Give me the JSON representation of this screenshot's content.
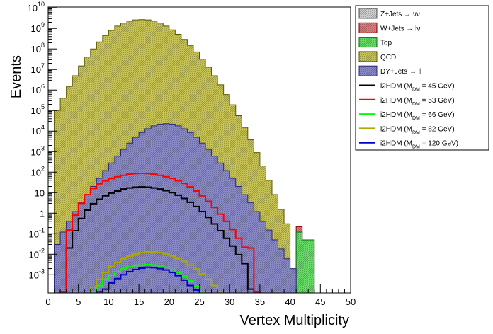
{
  "chart_data": {
    "type": "histogram",
    "xlabel": "Vertex Multiplicity",
    "ylabel": "Events",
    "x_range": [
      0,
      50
    ],
    "bin_width": 1,
    "y_scale": "log",
    "y_range": [
      0.00013,
      11000000000
    ],
    "x_ticks": [
      0,
      5,
      10,
      15,
      20,
      25,
      30,
      35,
      40,
      45,
      50
    ],
    "y_ticks": [
      {
        "value": 0.001,
        "base": "10",
        "exp": "-3"
      },
      {
        "value": 0.01,
        "base": "10",
        "exp": "-2"
      },
      {
        "value": 0.1,
        "base": "10",
        "exp": "-1"
      },
      {
        "value": 1,
        "base": "1",
        "exp": ""
      },
      {
        "value": 10,
        "base": "10",
        "exp": ""
      },
      {
        "value": 100,
        "base": "10",
        "exp": "2"
      },
      {
        "value": 1000,
        "base": "10",
        "exp": "3"
      },
      {
        "value": 10000,
        "base": "10",
        "exp": "4"
      },
      {
        "value": 100000,
        "base": "10",
        "exp": "5"
      },
      {
        "value": 1000000,
        "base": "10",
        "exp": "6"
      },
      {
        "value": 10000000,
        "base": "10",
        "exp": "7"
      },
      {
        "value": 100000000,
        "base": "10",
        "exp": "8"
      },
      {
        "value": 1000000000,
        "base": "10",
        "exp": "9"
      },
      {
        "value": 10000000000,
        "base": "10",
        "exp": "10"
      }
    ],
    "legend_position": "top-right",
    "stacked_backgrounds": [
      {
        "label": "DY+Jets → ll",
        "fill": "#8a8ac8",
        "edge": "#2a2a7a",
        "pattern": "hatched",
        "values": [
          2e-05,
          0.03,
          0.12,
          0.4,
          1.2,
          3.2,
          8,
          20,
          50,
          120,
          280,
          600,
          1300,
          2600,
          5000,
          8500,
          13000,
          18000,
          22000,
          23000,
          22000,
          18000,
          13000,
          8500,
          5000,
          2600,
          1300,
          600,
          280,
          120,
          50,
          20,
          8,
          3.2,
          1.2,
          0.4,
          0.15,
          0.05,
          0.018,
          0.006,
          0.002,
          0,
          0,
          0,
          0,
          0,
          0,
          0,
          0,
          0
        ]
      },
      {
        "label": "QCD",
        "fill": "#c8c455",
        "edge": "#5c5a00",
        "pattern": "hatched",
        "values": [
          2e-05,
          100000,
          400000,
          1500000,
          5000000,
          15000000,
          40000000,
          100000000,
          220000000,
          450000000,
          800000000,
          1300000000,
          1800000000,
          2300000000,
          2600000000,
          2700000000,
          2600000000,
          2300000000,
          1800000000,
          1300000000,
          850000000,
          520000000,
          290000000,
          150000000,
          72000000,
          32000000,
          13000000,
          5000000,
          1800000,
          600000,
          190000,
          56000,
          15000,
          3800,
          900,
          200,
          40,
          8,
          1.5,
          0.3,
          0,
          0,
          0,
          0,
          0,
          0,
          0,
          0,
          0,
          0
        ]
      },
      {
        "label": "Top",
        "fill": "#66dd66",
        "edge": "#0b6b0b",
        "pattern": "hatched",
        "values": [
          0,
          0,
          0,
          0,
          0,
          0,
          0,
          0,
          0,
          0,
          0,
          0,
          0,
          0,
          0,
          0,
          0,
          0,
          0,
          0,
          0,
          0,
          0,
          0,
          0,
          0,
          0,
          0,
          0,
          0,
          0,
          0,
          0,
          0,
          0,
          0,
          0,
          0,
          0,
          0,
          0,
          0.12,
          0.05,
          0.05,
          0,
          0,
          0,
          0,
          0,
          0
        ]
      },
      {
        "label": "W+Jets → lν",
        "fill": "#e07a7a",
        "edge": "#8a0000",
        "pattern": "hatched",
        "values": [
          0,
          0,
          0,
          0,
          0,
          0,
          0,
          0,
          0,
          0,
          0,
          0,
          0,
          0,
          0,
          0,
          0,
          0,
          0,
          0,
          0,
          0,
          0,
          0,
          0,
          0,
          0,
          0,
          0,
          0,
          0,
          0,
          0,
          0,
          0,
          0,
          0,
          0,
          0,
          0,
          0,
          0.1,
          0,
          0,
          0,
          0,
          0,
          0,
          0,
          0
        ]
      },
      {
        "label": "Z+Jets → νν",
        "fill": "#cfcfcf",
        "edge": "#555555",
        "pattern": "hatched",
        "values": [
          0,
          0,
          0,
          0,
          0,
          0,
          0,
          0,
          0,
          0,
          0,
          0,
          0,
          0,
          0,
          0,
          0,
          0,
          0,
          0,
          0,
          0,
          0,
          0,
          0,
          0,
          0,
          0,
          0,
          0,
          0,
          0,
          0,
          0,
          0,
          0,
          0,
          0,
          0,
          0,
          0,
          0,
          0,
          0,
          0,
          0,
          0,
          0,
          0,
          0
        ]
      }
    ],
    "signal_series": [
      {
        "label": "i2HDM (M",
        "sub": "DM",
        "mass_text": " =  45 GeV)",
        "color": "#000000",
        "values": [
          0,
          0,
          0.00015,
          0.02,
          0.14,
          0.55,
          1.4,
          2.9,
          4.8,
          7,
          9.5,
          12,
          15,
          17,
          18.5,
          19,
          18.5,
          17,
          15,
          12.5,
          10,
          7.5,
          5.2,
          3.4,
          2.1,
          1.2,
          0.62,
          0.3,
          0.14,
          0.06,
          0.025,
          0.0095,
          0.0035,
          0.0002,
          0.00015,
          0,
          0,
          0,
          0,
          0,
          0,
          0,
          0,
          0,
          0,
          0,
          0,
          0,
          0,
          0
        ]
      },
      {
        "label": "i2HDM (M",
        "sub": "DM",
        "mass_text": " =  53 GeV)",
        "color": "#ff0000",
        "values": [
          0,
          0,
          0.00015,
          0.15,
          0.8,
          3,
          8,
          16,
          27,
          38,
          49,
          60,
          70,
          80,
          85,
          87,
          85,
          80,
          70,
          60,
          49,
          38,
          28,
          19,
          12,
          7,
          3.8,
          1.9,
          0.9,
          0.4,
          0.16,
          0.06,
          0.022,
          0.02,
          0.00015,
          0,
          0,
          0,
          0,
          0,
          0,
          0,
          0,
          0,
          0,
          0,
          0,
          0,
          0,
          0
        ]
      },
      {
        "label": "i2HDM (M",
        "sub": "DM",
        "mass_text": " =  66 GeV)",
        "color": "#00ff00",
        "values": [
          0,
          0,
          0,
          0,
          0,
          0,
          0,
          0.00015,
          0.0003,
          0.0006,
          0.00095,
          0.0014,
          0.0019,
          0.0024,
          0.0028,
          0.003,
          0.0031,
          0.003,
          0.0027,
          0.0023,
          0.0018,
          0.0013,
          0.00085,
          0.0005,
          0.00028,
          0.00015,
          0,
          0,
          0,
          0,
          0,
          0,
          0,
          0,
          0,
          0,
          0,
          0,
          0,
          0,
          0,
          0,
          0,
          0,
          0,
          0,
          0,
          0,
          0,
          0
        ]
      },
      {
        "label": "i2HDM (M",
        "sub": "DM",
        "mass_text": " =  82 GeV)",
        "color": "#aaaa00",
        "values": [
          0,
          0,
          0,
          0,
          0,
          0,
          0,
          0.00025,
          0.0006,
          0.0013,
          0.0025,
          0.004,
          0.006,
          0.008,
          0.01,
          0.012,
          0.013,
          0.013,
          0.012,
          0.01,
          0.0082,
          0.0063,
          0.0045,
          0.003,
          0.0019,
          0.0011,
          0.0006,
          0.0003,
          0.00015,
          0,
          0,
          0,
          0,
          0,
          0,
          0,
          0,
          0,
          0,
          0,
          0,
          0,
          0,
          0,
          0,
          0,
          0,
          0,
          0,
          0
        ]
      },
      {
        "label": "i2HDM (M",
        "sub": "DM",
        "mass_text": " = 120 GeV)",
        "color": "#0000cc",
        "values": [
          0,
          0,
          0,
          0,
          0,
          0,
          0,
          0,
          0.00015,
          0.0002,
          0.0004,
          0.00065,
          0.001,
          0.0014,
          0.0018,
          0.0021,
          0.0023,
          0.0022,
          0.002,
          0.0017,
          0.0013,
          0.0009,
          0.00055,
          0.0003,
          0.00018,
          0,
          0,
          0,
          0,
          0,
          0,
          0,
          0,
          0,
          0,
          0,
          0,
          0,
          0,
          0,
          0,
          0,
          0,
          0,
          0,
          0,
          0,
          0,
          0,
          0
        ]
      }
    ],
    "legend_order": [
      "Z+Jets → νν",
      "W+Jets → lν",
      "Top",
      "QCD",
      "DY+Jets → ll"
    ]
  }
}
